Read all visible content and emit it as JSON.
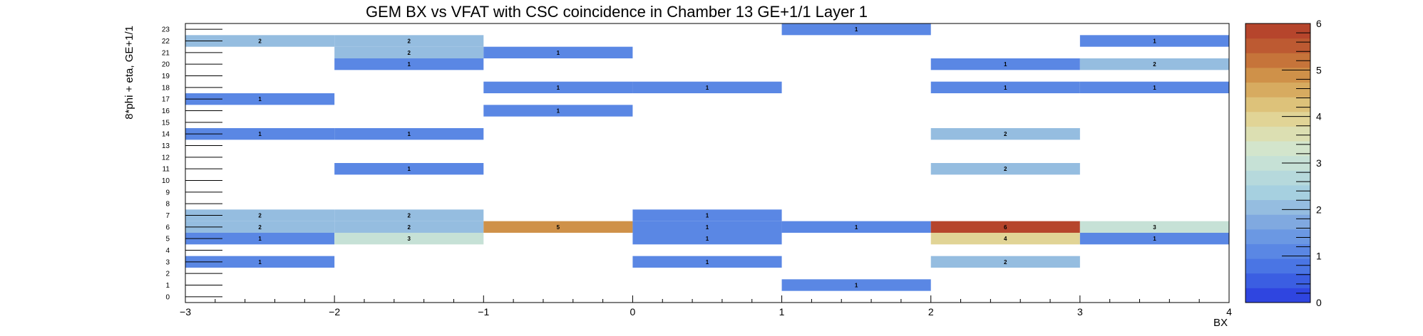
{
  "chart_data": {
    "type": "heatmap",
    "title": "GEM BX vs VFAT with CSC coincidence in Chamber 13 GE+1/1 Layer 1",
    "xlabel": "BX",
    "ylabel": "8*phi + eta, GE+1/1",
    "xlim": [
      -3,
      4
    ],
    "ylim": [
      -0.5,
      23.5
    ],
    "x_bin_edges": [
      -3,
      -2,
      -1,
      0,
      1,
      2,
      3,
      4
    ],
    "x_ticks": [
      "−3",
      "−2",
      "−1",
      "0",
      "1",
      "2",
      "3",
      "4"
    ],
    "y_ticks": [
      "0",
      "1",
      "2",
      "3",
      "4",
      "5",
      "6",
      "7",
      "8",
      "9",
      "10",
      "11",
      "12",
      "13",
      "14",
      "15",
      "16",
      "17",
      "18",
      "19",
      "20",
      "21",
      "22",
      "23"
    ],
    "zlim": [
      0,
      6
    ],
    "z_ticks": [
      "0",
      "1",
      "2",
      "3",
      "4",
      "5",
      "6"
    ],
    "palette": [
      "#2f45e0",
      "#3b5ee2",
      "#4a75e4",
      "#5a87e4",
      "#6b98e3",
      "#80a9e0",
      "#95bde0",
      "#a6d0e0",
      "#b6d9dc",
      "#c6e1d6",
      "#d3e5cc",
      "#dcdfb2",
      "#e1d496",
      "#ddc27a",
      "#d7ab60",
      "#cf9149",
      "#c6743a",
      "#bd5a32",
      "#b6452c"
    ],
    "cells": [
      {
        "x": -3,
        "y": 22,
        "value": 2
      },
      {
        "x": -2,
        "y": 22,
        "value": 2
      },
      {
        "x": -2,
        "y": 21,
        "value": 2
      },
      {
        "x": -1,
        "y": 21,
        "value": 1
      },
      {
        "x": -2,
        "y": 20,
        "value": 1
      },
      {
        "x": -1,
        "y": 18,
        "value": 1
      },
      {
        "x": 0,
        "y": 18,
        "value": 1
      },
      {
        "x": -3,
        "y": 17,
        "value": 1
      },
      {
        "x": -1,
        "y": 16,
        "value": 1
      },
      {
        "x": -3,
        "y": 14,
        "value": 1
      },
      {
        "x": -2,
        "y": 14,
        "value": 1
      },
      {
        "x": -2,
        "y": 11,
        "value": 1
      },
      {
        "x": -3,
        "y": 7,
        "value": 2
      },
      {
        "x": -2,
        "y": 7,
        "value": 2
      },
      {
        "x": -3,
        "y": 6,
        "value": 2
      },
      {
        "x": -2,
        "y": 6,
        "value": 2
      },
      {
        "x": -3,
        "y": 5,
        "value": 1
      },
      {
        "x": -2,
        "y": 5,
        "value": 3
      },
      {
        "x": -3,
        "y": 3,
        "value": 1
      },
      {
        "x": -1,
        "y": 6,
        "value": 5
      },
      {
        "x": 0,
        "y": 7,
        "value": 1
      },
      {
        "x": 0,
        "y": 6,
        "value": 1
      },
      {
        "x": 0,
        "y": 5,
        "value": 1
      },
      {
        "x": 0,
        "y": 3,
        "value": 1
      },
      {
        "x": 1,
        "y": 23,
        "value": 1
      },
      {
        "x": 1,
        "y": 6,
        "value": 1
      },
      {
        "x": 1,
        "y": 1,
        "value": 1
      },
      {
        "x": 2,
        "y": 20,
        "value": 1
      },
      {
        "x": 3,
        "y": 20,
        "value": 2
      },
      {
        "x": 3,
        "y": 22,
        "value": 1
      },
      {
        "x": 2,
        "y": 18,
        "value": 1
      },
      {
        "x": 3,
        "y": 18,
        "value": 1
      },
      {
        "x": 2,
        "y": 14,
        "value": 2
      },
      {
        "x": 2,
        "y": 11,
        "value": 2
      },
      {
        "x": 2,
        "y": 6,
        "value": 6
      },
      {
        "x": 3,
        "y": 6,
        "value": 3
      },
      {
        "x": 2,
        "y": 5,
        "value": 4
      },
      {
        "x": 3,
        "y": 5,
        "value": 1
      },
      {
        "x": 2,
        "y": 3,
        "value": 2
      }
    ]
  }
}
